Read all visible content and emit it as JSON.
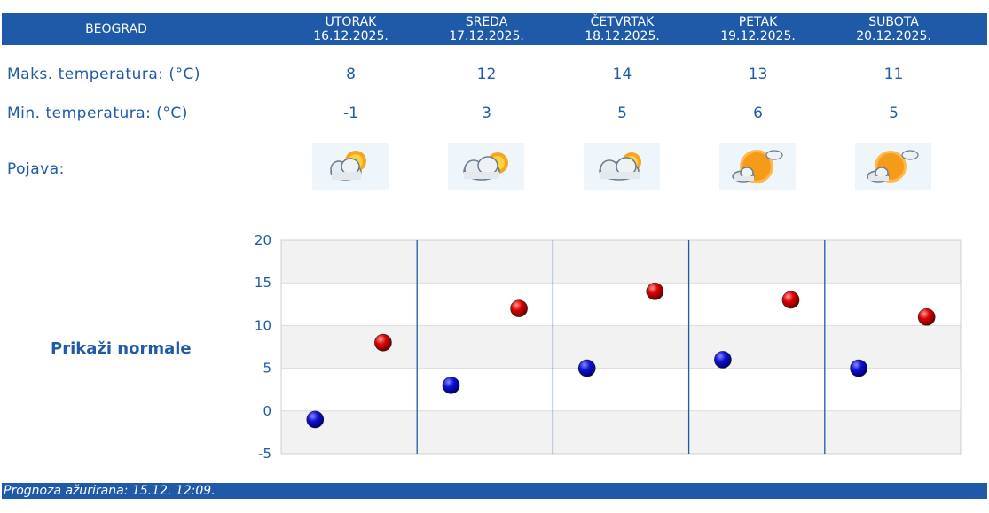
{
  "header": {
    "city": "BEOGRAD",
    "days": [
      {
        "name": "UTORAK",
        "date": "16.12.2025."
      },
      {
        "name": "SREDA",
        "date": "17.12.2025."
      },
      {
        "name": "ČETVRTAK",
        "date": "18.12.2025."
      },
      {
        "name": "PETAK",
        "date": "19.12.2025."
      },
      {
        "name": "SUBOTA",
        "date": "20.12.2025."
      }
    ]
  },
  "rows": {
    "max_label": "Maks. temperatura: (°C)",
    "max_values": [
      "8",
      "12",
      "14",
      "13",
      "11"
    ],
    "min_label": "Min. temperatura: (°C)",
    "min_values": [
      "-1",
      "3",
      "5",
      "6",
      "5"
    ],
    "phenomenon_label": "Pojava:",
    "phenomenon_icons": [
      "partly-cloudy-icon",
      "mostly-cloudy-icon",
      "mostly-cloudy-icon",
      "sunny-intervals-icon",
      "sunny-intervals-icon"
    ]
  },
  "link_normale": "Prikaži normale",
  "chart_data": {
    "type": "scatter",
    "categories": [
      "16.12.2025.",
      "17.12.2025.",
      "18.12.2025.",
      "19.12.2025.",
      "20.12.2025."
    ],
    "series": [
      {
        "values": [
          -1,
          3,
          5,
          6,
          5
        ],
        "color": "#0000cc"
      },
      {
        "values": [
          8,
          12,
          14,
          13,
          11
        ],
        "color": "#cc0000"
      }
    ],
    "ylim": [
      -5,
      20
    ],
    "yticks": [
      "20",
      "15",
      "10",
      "5",
      "0",
      "-5"
    ],
    "grid": true
  },
  "colors": {
    "accent": "#1f5aa8",
    "min_marker": "#0000cc",
    "max_marker": "#cc0000"
  },
  "footer": {
    "updated": "Prognoza ažurirana:  15.12. 12:09."
  }
}
